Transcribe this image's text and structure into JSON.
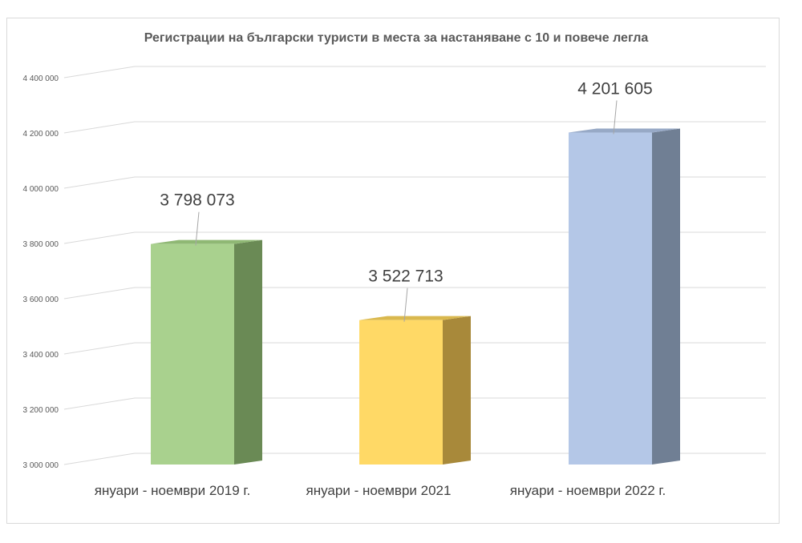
{
  "chart_data": {
    "type": "bar",
    "title": "Регистрации на български туристи в места за настаняване с 10 и повече легла",
    "categories": [
      "януари - ноември 2019 г.",
      "януари - ноември 2021",
      "януари - ноември 2022 г."
    ],
    "values": [
      3798073,
      3522713,
      4201605
    ],
    "data_labels": [
      "3 798 073",
      "3 522 713",
      "4 201 605"
    ],
    "ylim": [
      3000000,
      4400000
    ],
    "yticks": [
      {
        "value": 3000000,
        "label": "3 000 000"
      },
      {
        "value": 3200000,
        "label": "3 200 000"
      },
      {
        "value": 3400000,
        "label": "3 400 000"
      },
      {
        "value": 3600000,
        "label": "3 600 000"
      },
      {
        "value": 3800000,
        "label": "3 800 000"
      },
      {
        "value": 4000000,
        "label": "4 000 000"
      },
      {
        "value": 4200000,
        "label": "4 200 000"
      },
      {
        "value": 4400000,
        "label": "4 400 000"
      }
    ],
    "grid": true,
    "style": "3d-column",
    "colors": [
      {
        "front": "#a9d18e",
        "side": "#6a8a55",
        "top": "#8fb874"
      },
      {
        "front": "#ffd966",
        "side": "#a8893a",
        "top": "#d9b84e"
      },
      {
        "front": "#b4c7e7",
        "side": "#707f94",
        "top": "#97a9c6"
      }
    ],
    "gridline_color": "#d9d9d9",
    "leader_line_color": "#a6a6a6"
  }
}
